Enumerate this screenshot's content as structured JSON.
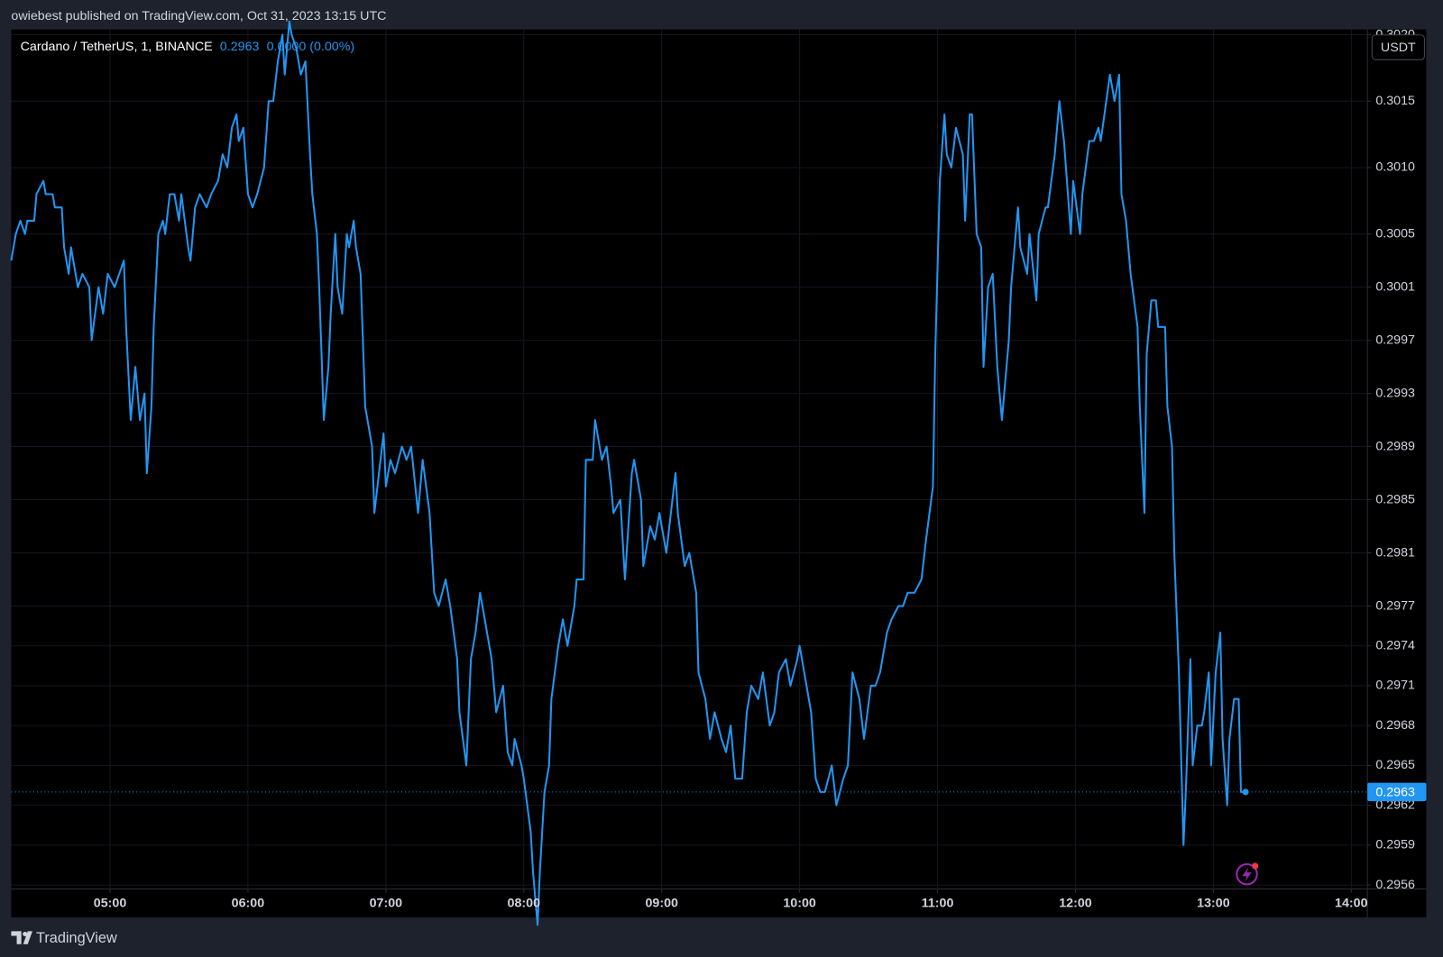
{
  "header": {
    "publisher_line": "owiebest published on TradingView.com, Oct 31, 2023 13:15 UTC"
  },
  "footer": {
    "brand": "TradingView"
  },
  "chart_data": {
    "type": "line",
    "currency": "USDT",
    "legend_change": "0.0000 (0.00%)",
    "grid": true,
    "xlim": [
      "04:17",
      "14:07"
    ],
    "xticks": [
      "05:00",
      "06:00",
      "07:00",
      "08:00",
      "09:00",
      "10:00",
      "11:00",
      "12:00",
      "13:00",
      "14:00"
    ],
    "ylim": [
      0.29557,
      0.30204
    ],
    "yticks": [
      {
        "value": 0.302,
        "label": "0.3020"
      },
      {
        "value": 0.3015,
        "label": "0.3015"
      },
      {
        "value": 0.301,
        "label": "0.3010"
      },
      {
        "value": 0.3005,
        "label": "0.3005"
      },
      {
        "value": 0.3001,
        "label": "0.3001"
      },
      {
        "value": 0.2997,
        "label": "0.2997"
      },
      {
        "value": 0.2993,
        "label": "0.2993"
      },
      {
        "value": 0.2989,
        "label": "0.2989"
      },
      {
        "value": 0.2985,
        "label": "0.2985"
      },
      {
        "value": 0.2981,
        "label": "0.2981"
      },
      {
        "value": 0.2977,
        "label": "0.2977"
      },
      {
        "value": 0.2974,
        "label": "0.2974"
      },
      {
        "value": 0.2971,
        "label": "0.2971"
      },
      {
        "value": 0.2968,
        "label": "0.2968"
      },
      {
        "value": 0.2965,
        "label": "0.2965"
      },
      {
        "value": 0.2962,
        "label": "0.2962"
      },
      {
        "value": 0.2959,
        "label": "0.2959"
      },
      {
        "value": 0.2956,
        "label": "0.2956"
      }
    ],
    "x": [
      "04:17",
      "04:19",
      "04:21",
      "04:23",
      "04:24",
      "04:27",
      "04:28",
      "04:31",
      "04:32",
      "04:35",
      "04:36",
      "04:39",
      "04:40",
      "04:42",
      "04:43",
      "04:46",
      "04:48",
      "04:51",
      "04:52",
      "04:55",
      "04:57",
      "04:59",
      "05:02",
      "05:04",
      "05:06",
      "05:07",
      "05:09",
      "05:11",
      "05:13",
      "05:15",
      "05:16",
      "05:18",
      "05:19",
      "05:21",
      "05:23",
      "05:24",
      "05:26",
      "05:28",
      "05:30",
      "05:31",
      "05:34",
      "05:35",
      "05:37",
      "05:39",
      "05:42",
      "05:44",
      "05:47",
      "05:49",
      "05:51",
      "05:53",
      "05:55",
      "05:56",
      "05:58",
      "06:00",
      "06:02",
      "06:04",
      "06:07",
      "06:09",
      "06:11",
      "06:13",
      "06:15",
      "06:16",
      "06:18",
      "06:19",
      "06:21",
      "06:23",
      "06:25",
      "06:27",
      "06:28",
      "06:30",
      "06:31",
      "06:33",
      "06:35",
      "06:36",
      "06:38",
      "06:39",
      "06:41",
      "06:43",
      "06:44",
      "06:46",
      "06:47",
      "06:49",
      "06:51",
      "06:54",
      "06:55",
      "06:57",
      "06:59",
      "07:00",
      "07:02",
      "07:04",
      "07:07",
      "07:09",
      "07:11",
      "07:14",
      "07:16",
      "07:19",
      "07:21",
      "07:23",
      "07:26",
      "07:28",
      "07:31",
      "07:32",
      "07:35",
      "07:37",
      "07:39",
      "07:41",
      "07:43",
      "07:46",
      "07:48",
      "07:51",
      "07:53",
      "07:55",
      "07:56",
      "07:59",
      "08:00",
      "08:03",
      "08:04",
      "08:06",
      "08:07",
      "08:09",
      "08:11",
      "08:12",
      "08:15",
      "08:17",
      "08:19",
      "08:22",
      "08:23",
      "08:26",
      "08:27",
      "08:30",
      "08:31",
      "08:34",
      "08:36",
      "08:38",
      "08:39",
      "08:42",
      "08:44",
      "08:47",
      "08:48",
      "08:51",
      "08:52",
      "08:55",
      "08:57",
      "08:59",
      "09:02",
      "09:04",
      "09:06",
      "09:07",
      "09:10",
      "09:12",
      "09:15",
      "09:16",
      "09:19",
      "09:21",
      "09:23",
      "09:26",
      "09:28",
      "09:30",
      "09:32",
      "09:35",
      "09:37",
      "09:39",
      "09:42",
      "09:44",
      "09:47",
      "09:49",
      "09:51",
      "09:54",
      "09:56",
      "09:59",
      "10:00",
      "10:03",
      "10:05",
      "10:07",
      "10:09",
      "10:11",
      "10:14",
      "10:16",
      "10:19",
      "10:21",
      "10:23",
      "10:26",
      "10:28",
      "10:31",
      "10:33",
      "10:35",
      "10:38",
      "10:40",
      "10:43",
      "10:45",
      "10:47",
      "10:50",
      "10:53",
      "10:55",
      "10:58",
      "10:59",
      "11:01",
      "11:03",
      "11:04",
      "11:06",
      "11:08",
      "11:11",
      "11:12",
      "11:14",
      "11:15",
      "11:17",
      "11:19",
      "11:20",
      "11:22",
      "11:24",
      "11:26",
      "11:28",
      "11:31",
      "11:32",
      "11:35",
      "11:36",
      "11:39",
      "11:40",
      "11:43",
      "11:44",
      "11:47",
      "11:48",
      "11:51",
      "11:53",
      "11:55",
      "11:58",
      "11:59",
      "12:02",
      "12:03",
      "12:06",
      "12:08",
      "12:10",
      "12:11",
      "12:15",
      "12:17",
      "12:19",
      "12:20",
      "12:22",
      "12:24",
      "12:27",
      "12:28",
      "12:30",
      "12:31",
      "12:33",
      "12:35",
      "12:36",
      "12:39",
      "12:40",
      "12:42",
      "12:43",
      "12:45",
      "12:47",
      "12:48",
      "12:50",
      "12:51",
      "12:53",
      "12:55",
      "12:56",
      "12:58",
      "12:59",
      "13:01",
      "13:03",
      "13:04",
      "13:06",
      "13:07",
      "13:09",
      "13:11",
      "13:12",
      "13:14"
    ],
    "series": [
      {
        "name": "Cardano / TetherUS, 1, BINANCE",
        "color": "#2196f3",
        "values": [
          0.3003,
          0.3005,
          0.3006,
          0.3005,
          0.3006,
          0.3006,
          0.3008,
          0.3009,
          0.3008,
          0.3008,
          0.3007,
          0.3007,
          0.3004,
          0.3002,
          0.3004,
          0.3001,
          0.3002,
          0.3001,
          0.2997,
          0.3001,
          0.2999,
          0.3002,
          0.3001,
          0.3002,
          0.3003,
          0.2998,
          0.2991,
          0.2995,
          0.2991,
          0.2993,
          0.2987,
          0.2992,
          0.2998,
          0.3005,
          0.3006,
          0.3005,
          0.3008,
          0.3008,
          0.3006,
          0.3008,
          0.3004,
          0.3003,
          0.3007,
          0.3008,
          0.3007,
          0.3008,
          0.3009,
          0.3011,
          0.301,
          0.3013,
          0.3014,
          0.3012,
          0.3013,
          0.3008,
          0.3007,
          0.3008,
          0.301,
          0.3015,
          0.3015,
          0.3018,
          0.302,
          0.3017,
          0.3021,
          0.302,
          0.3019,
          0.3017,
          0.3018,
          0.3011,
          0.3008,
          0.3005,
          0.3001,
          0.2991,
          0.2995,
          0.2999,
          0.3005,
          0.3001,
          0.2999,
          0.3005,
          0.3004,
          0.3006,
          0.3004,
          0.3002,
          0.2992,
          0.2989,
          0.2984,
          0.2987,
          0.299,
          0.2986,
          0.2988,
          0.2987,
          0.2989,
          0.2988,
          0.2989,
          0.2984,
          0.2988,
          0.2984,
          0.2978,
          0.2977,
          0.2979,
          0.2977,
          0.2973,
          0.2969,
          0.2965,
          0.2973,
          0.2975,
          0.2978,
          0.2976,
          0.2973,
          0.2969,
          0.2971,
          0.2966,
          0.2965,
          0.2967,
          0.2965,
          0.2964,
          0.296,
          0.2957,
          0.2953,
          0.2957,
          0.2963,
          0.2965,
          0.297,
          0.2974,
          0.2976,
          0.2974,
          0.2977,
          0.2979,
          0.2979,
          0.2988,
          0.2988,
          0.2991,
          0.2988,
          0.2989,
          0.2986,
          0.2984,
          0.2985,
          0.2979,
          0.2987,
          0.2988,
          0.2985,
          0.298,
          0.2983,
          0.2982,
          0.2984,
          0.2981,
          0.2984,
          0.2987,
          0.2984,
          0.298,
          0.2981,
          0.2978,
          0.2972,
          0.297,
          0.2967,
          0.2969,
          0.2967,
          0.2966,
          0.2968,
          0.2964,
          0.2964,
          0.2969,
          0.2971,
          0.297,
          0.2972,
          0.2968,
          0.2969,
          0.2972,
          0.2973,
          0.2971,
          0.2973,
          0.2974,
          0.2971,
          0.2969,
          0.2964,
          0.2963,
          0.2963,
          0.2965,
          0.2962,
          0.2964,
          0.2965,
          0.2972,
          0.297,
          0.2967,
          0.2971,
          0.2971,
          0.2972,
          0.2975,
          0.2976,
          0.2977,
          0.2977,
          0.2978,
          0.2978,
          0.2979,
          0.2982,
          0.2986,
          0.2996,
          0.3009,
          0.3014,
          0.3011,
          0.301,
          0.3013,
          0.3011,
          0.3006,
          0.3014,
          0.3014,
          0.3005,
          0.3004,
          0.2995,
          0.3001,
          0.3002,
          0.2995,
          0.2991,
          0.2997,
          0.3001,
          0.3007,
          0.3004,
          0.3002,
          0.3005,
          0.3,
          0.3005,
          0.3007,
          0.3007,
          0.3011,
          0.3015,
          0.3012,
          0.3005,
          0.3009,
          0.3005,
          0.3008,
          0.3012,
          0.3012,
          0.3013,
          0.3012,
          0.3017,
          0.3015,
          0.3017,
          0.3008,
          0.3006,
          0.3002,
          0.2998,
          0.2992,
          0.2984,
          0.2996,
          0.3,
          0.3,
          0.2998,
          0.2998,
          0.2992,
          0.2989,
          0.2981,
          0.2972,
          0.2959,
          0.2963,
          0.2973,
          0.2965,
          0.2968,
          0.2968,
          0.2969,
          0.2972,
          0.2965,
          0.2972,
          0.2975,
          0.2967,
          0.2962,
          0.2967,
          0.297,
          0.297,
          0.2963,
          0.2963
        ]
      }
    ]
  }
}
